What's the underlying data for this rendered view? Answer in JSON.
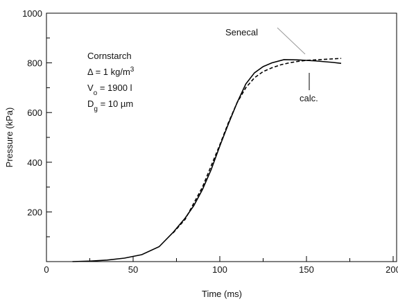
{
  "chart_data": {
    "type": "line",
    "xlabel": "Time  (ms)",
    "ylabel": "Pressure (kPa)",
    "xlim": [
      0,
      200
    ],
    "xticks": [
      0,
      50,
      100,
      150,
      200
    ],
    "xminorticks": [
      25,
      75,
      125,
      175
    ],
    "ylim": [
      0,
      1000
    ],
    "yticks": [
      200,
      400,
      600,
      800,
      1000
    ],
    "yminorticks": [
      100,
      300,
      500,
      700,
      900
    ],
    "annotation": [
      [
        {
          "text": "Cornstarch"
        }
      ],
      [
        {
          "text": "Δ = 1 kg/m"
        },
        {
          "sup": "3"
        }
      ],
      [
        {
          "text": "V"
        },
        {
          "sub": "o"
        },
        {
          "text": " = 1900 l"
        }
      ],
      [
        {
          "text": "D"
        },
        {
          "sub": "g"
        },
        {
          "text": " = 10 µm"
        }
      ]
    ],
    "series": [
      {
        "name": "calc.",
        "color": "#000000",
        "dash": false,
        "x": [
          15,
          25,
          35,
          45,
          55,
          65,
          73,
          80,
          85,
          90,
          95,
          100,
          105,
          110,
          115,
          120,
          125,
          130,
          137,
          145,
          155,
          165,
          170
        ],
        "values": [
          0,
          2,
          6,
          14,
          28,
          60,
          117,
          175,
          225,
          290,
          370,
          465,
          555,
          640,
          715,
          760,
          785,
          800,
          813,
          812,
          808,
          802,
          798
        ]
      },
      {
        "name": "Senecal",
        "color": "#000000",
        "dash": true,
        "x": [
          73,
          80,
          90,
          100,
          105,
          110,
          115,
          120,
          125,
          130,
          135,
          140,
          145,
          150,
          160,
          170
        ],
        "values": [
          115,
          170,
          300,
          470,
          560,
          640,
          700,
          740,
          765,
          780,
          792,
          800,
          806,
          810,
          814,
          818
        ]
      }
    ]
  }
}
